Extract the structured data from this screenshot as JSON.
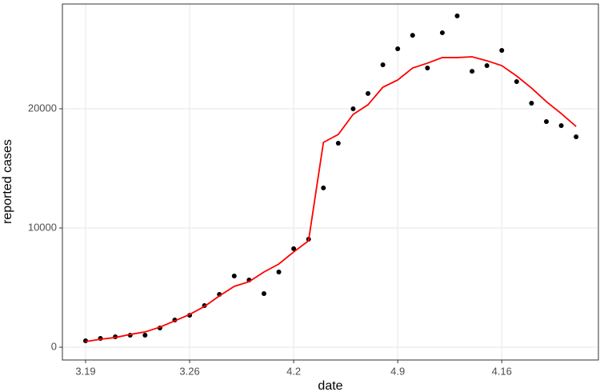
{
  "chart_data": {
    "type": "scatter",
    "x_label": "date",
    "y_label": "reported cases",
    "x": [
      0,
      1,
      2,
      3,
      4,
      5,
      6,
      7,
      8,
      9,
      10,
      11,
      12,
      13,
      14,
      15,
      16,
      17,
      18,
      19,
      20,
      21,
      22,
      23,
      24,
      25,
      26,
      27,
      28,
      29,
      30,
      31,
      32,
      33
    ],
    "series": [
      {
        "mark": "point",
        "color": "#000000",
        "values": [
          540,
          740,
          870,
          1010,
          1010,
          1610,
          2280,
          2680,
          3490,
          4430,
          5970,
          5640,
          4500,
          6310,
          8260,
          9060,
          13360,
          17110,
          20000,
          21280,
          23690,
          25030,
          26170,
          23420,
          26380,
          27790,
          23150,
          23620,
          24900,
          22280,
          20470,
          18930,
          18590,
          17650
        ]
      },
      {
        "mark": "line",
        "color": "#ff0000",
        "values": [
          470,
          670,
          810,
          1070,
          1280,
          1680,
          2210,
          2750,
          3420,
          4300,
          5100,
          5500,
          6310,
          6980,
          7990,
          8930,
          17180,
          17850,
          19530,
          20340,
          21810,
          22420,
          23420,
          23830,
          24300,
          24300,
          24360,
          24030,
          23620,
          22750,
          21740,
          20600,
          19600,
          18520
        ]
      }
    ],
    "xlim": [
      -1.56,
      34.5
    ],
    "xticks": [
      {
        "value": 0,
        "label": "3.19"
      },
      {
        "value": 7,
        "label": "3.26"
      },
      {
        "value": 14,
        "label": "4.2"
      },
      {
        "value": 21,
        "label": "4.9"
      },
      {
        "value": 28,
        "label": "4.16"
      }
    ],
    "ylim": [
      -1074,
      28792
    ],
    "yticks": [
      0,
      10000,
      20000
    ],
    "grid": true
  }
}
